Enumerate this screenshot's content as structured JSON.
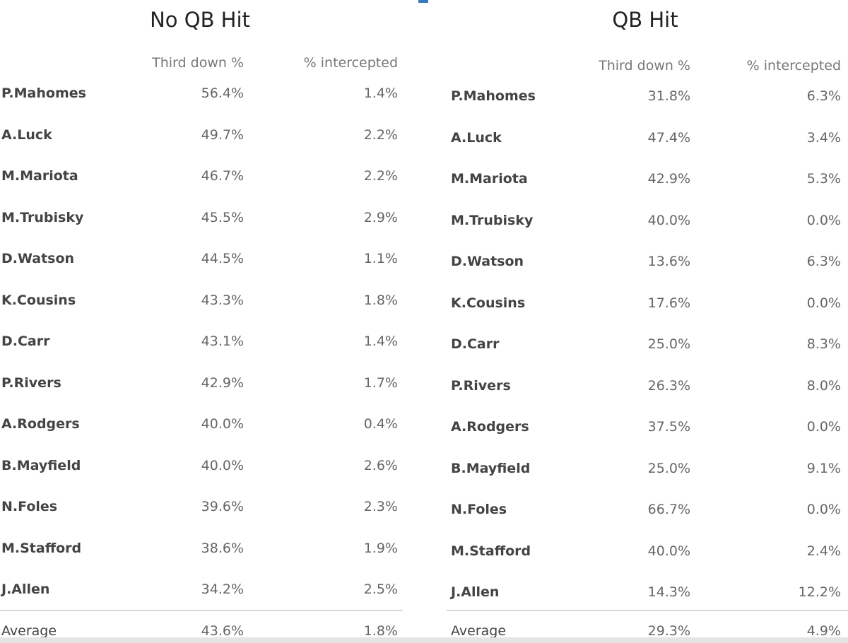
{
  "tables": [
    {
      "title": "No QB Hit",
      "columns": [
        "Third down %",
        "% intercepted"
      ],
      "rows": [
        [
          "P.Mahomes",
          "56.4%",
          "1.4%"
        ],
        [
          "A.Luck",
          "49.7%",
          "2.2%"
        ],
        [
          "M.Mariota",
          "46.7%",
          "2.2%"
        ],
        [
          "M.Trubisky",
          "45.5%",
          "2.9%"
        ],
        [
          "D.Watson",
          "44.5%",
          "1.1%"
        ],
        [
          "K.Cousins",
          "43.3%",
          "1.8%"
        ],
        [
          "D.Carr",
          "43.1%",
          "1.4%"
        ],
        [
          "P.Rivers",
          "42.9%",
          "1.7%"
        ],
        [
          "A.Rodgers",
          "40.0%",
          "0.4%"
        ],
        [
          "B.Mayfield",
          "40.0%",
          "2.6%"
        ],
        [
          "N.Foles",
          "39.6%",
          "2.3%"
        ],
        [
          "M.Stafford",
          "38.6%",
          "1.9%"
        ],
        [
          "J.Allen",
          "34.2%",
          "2.5%"
        ]
      ],
      "average": [
        "Average",
        "43.6%",
        "1.8%"
      ]
    },
    {
      "title": "QB Hit",
      "columns": [
        "Third down %",
        "% intercepted"
      ],
      "rows": [
        [
          "P.Mahomes",
          "31.8%",
          "6.3%"
        ],
        [
          "A.Luck",
          "47.4%",
          "3.4%"
        ],
        [
          "M.Mariota",
          "42.9%",
          "5.3%"
        ],
        [
          "M.Trubisky",
          "40.0%",
          "0.0%"
        ],
        [
          "D.Watson",
          "13.6%",
          "6.3%"
        ],
        [
          "K.Cousins",
          "17.6%",
          "0.0%"
        ],
        [
          "D.Carr",
          "25.0%",
          "8.3%"
        ],
        [
          "P.Rivers",
          "26.3%",
          "8.0%"
        ],
        [
          "A.Rodgers",
          "37.5%",
          "0.0%"
        ],
        [
          "B.Mayfield",
          "25.0%",
          "9.1%"
        ],
        [
          "N.Foles",
          "66.7%",
          "0.0%"
        ],
        [
          "M.Stafford",
          "40.0%",
          "2.4%"
        ],
        [
          "J.Allen",
          "14.3%",
          "12.2%"
        ]
      ],
      "average": [
        "Average",
        "29.3%",
        "4.9%"
      ]
    }
  ]
}
